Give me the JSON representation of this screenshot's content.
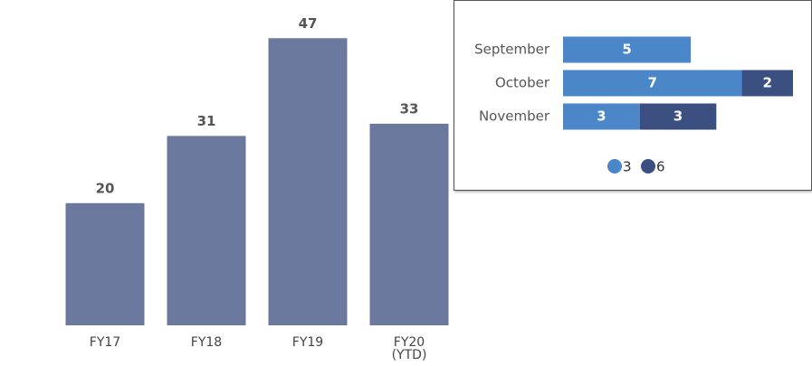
{
  "chart_data": [
    {
      "type": "bar",
      "categories": [
        "FY17",
        "FY18",
        "FY19",
        "FY20\n(YTD)"
      ],
      "values": [
        20,
        31,
        47,
        33
      ],
      "color": "#6b789e",
      "ylim": [
        0,
        50
      ]
    },
    {
      "type": "stacked-hbar",
      "categories": [
        "September",
        "October",
        "November"
      ],
      "series": [
        {
          "name": "3",
          "color": "#4a86c8",
          "values": [
            5,
            7,
            3
          ]
        },
        {
          "name": "6",
          "color": "#3b4f80",
          "values": [
            null,
            2,
            3
          ]
        }
      ],
      "xlim": [
        0,
        9
      ],
      "legend": "bottom"
    }
  ]
}
